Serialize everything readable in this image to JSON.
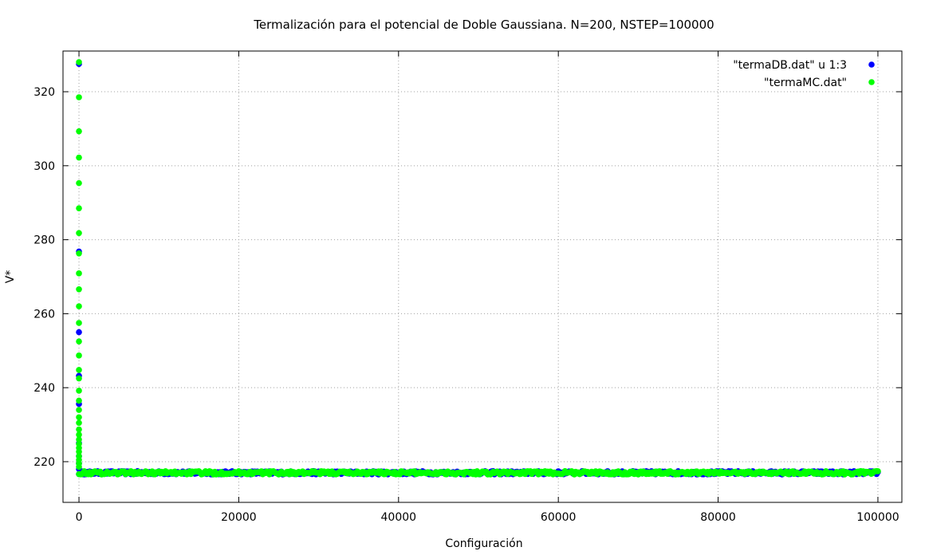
{
  "chart_data": {
    "type": "scatter",
    "title": "Termalización para el potencial de Doble Gaussiana. N=200, NSTEP=100000",
    "xlabel": "Configuración",
    "ylabel": "V*",
    "xlim": [
      -2000,
      103000
    ],
    "ylim": [
      209,
      331
    ],
    "xticks": [
      0,
      20000,
      40000,
      60000,
      80000,
      100000
    ],
    "yticks": [
      220,
      240,
      260,
      280,
      300,
      320
    ],
    "grid": true,
    "legend_position": "top-right",
    "series": [
      {
        "name": "\"termaDB.dat\" u 1:3",
        "color": "#0000ff",
        "points": [
          [
            0,
            327.5
          ],
          [
            0,
            276.8
          ],
          [
            0,
            255.0
          ],
          [
            0,
            243.2
          ],
          [
            0,
            235.6
          ],
          [
            0,
            225.0
          ],
          [
            0,
            221.5
          ],
          [
            0,
            219.5
          ],
          [
            0,
            218.0
          ]
        ],
        "plateau": {
          "x_start": 0,
          "x_end": 100000,
          "y_mean": 217.0
        }
      },
      {
        "name": "\"termaMC.dat\"",
        "color": "#00ff00",
        "points": [
          [
            0,
            328.0
          ],
          [
            0,
            318.5
          ],
          [
            0,
            309.3
          ],
          [
            0,
            302.2
          ],
          [
            0,
            295.3
          ],
          [
            0,
            288.5
          ],
          [
            0,
            281.8
          ],
          [
            0,
            276.3
          ],
          [
            0,
            270.9
          ],
          [
            0,
            266.6
          ],
          [
            0,
            262.0
          ],
          [
            0,
            257.5
          ],
          [
            0,
            252.5
          ],
          [
            0,
            248.7
          ],
          [
            0,
            244.8
          ],
          [
            0,
            242.5
          ],
          [
            0,
            239.2
          ],
          [
            0,
            236.5
          ],
          [
            0,
            234.0
          ],
          [
            0,
            232.0
          ],
          [
            0,
            230.5
          ],
          [
            0,
            228.7
          ],
          [
            0,
            227.3
          ],
          [
            0,
            226.0
          ],
          [
            0,
            224.8
          ],
          [
            0,
            223.7
          ],
          [
            0,
            222.7
          ],
          [
            0,
            221.5
          ],
          [
            0,
            220.5
          ],
          [
            0,
            219.5
          ],
          [
            0,
            218.6
          ]
        ],
        "plateau": {
          "x_start": 0,
          "x_end": 100000,
          "y_mean": 217.0
        }
      }
    ]
  }
}
